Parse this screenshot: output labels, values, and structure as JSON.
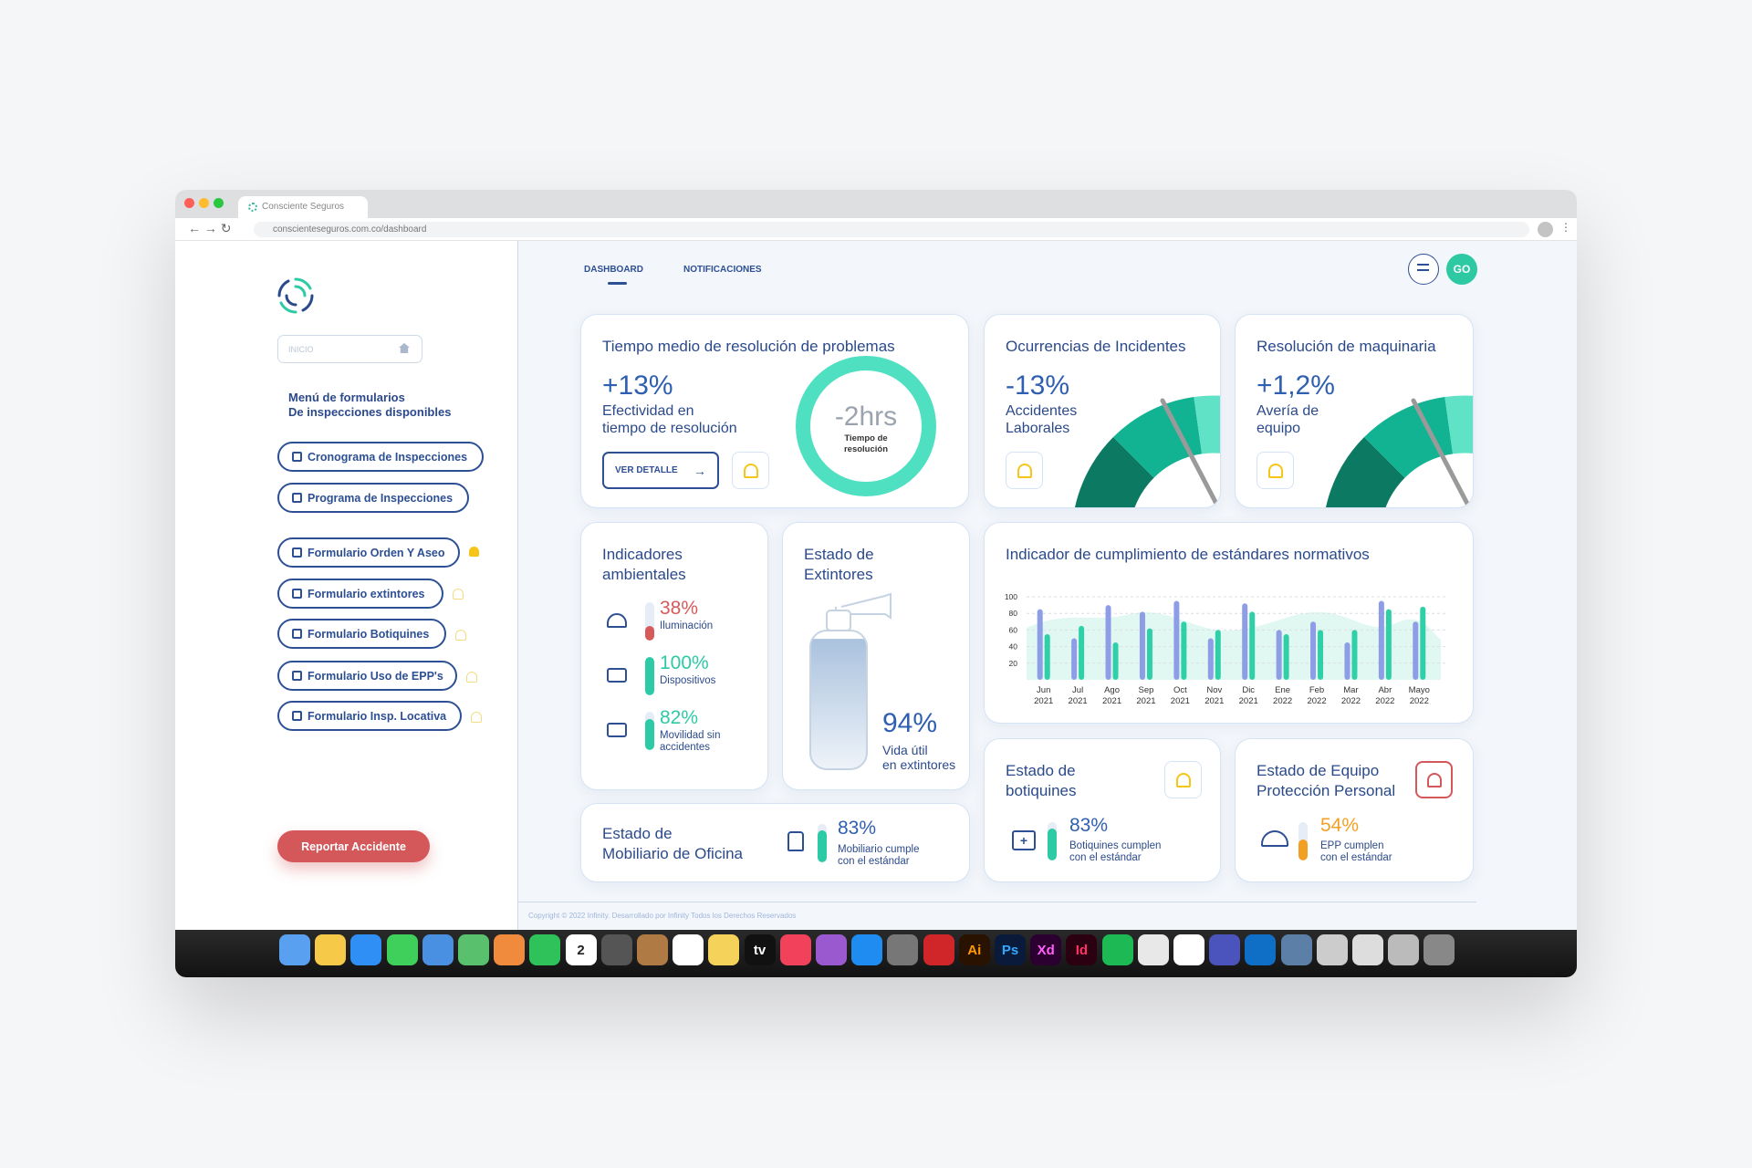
{
  "browser": {
    "tab_title": "Consciente Seguros",
    "url": "conscienteseguros.com.co/dashboard"
  },
  "sidebar": {
    "search_placeholder": "INICIO",
    "menu_title": [
      "Menú de formularios",
      "De inspecciones disponibles"
    ],
    "links": [
      "Cronograma de Inspecciones",
      "Programa de Inspecciones"
    ],
    "forms": [
      "Formulario Orden Y Aseo",
      "Formulario extintores",
      "Formulario Botiquines",
      "Formulario Uso de EPP's",
      "Formulario Insp. Locativa"
    ],
    "report_button": "Reportar Accidente"
  },
  "nav": {
    "tabs": [
      "DASHBOARD",
      "NOTIFICACIONES"
    ],
    "avatar": "GO"
  },
  "cards": {
    "resolution_time": {
      "title": "Tiempo medio de resolución de problemas",
      "value": "+13%",
      "label": [
        "Efectividad en",
        "tiempo de resolución"
      ],
      "button": "VER DETALLE",
      "donut_value": "-2hrs",
      "donut_label": [
        "Tiempo de",
        "resolución"
      ]
    },
    "incidents": {
      "title": "Ocurrencias de Incidentes",
      "value": "-13%",
      "label": [
        "Accidentes",
        "Laborales"
      ]
    },
    "machinery": {
      "title": "Resolución de maquinaria",
      "value": "+1,2%",
      "label": [
        "Avería de",
        "equipo"
      ]
    },
    "environment": {
      "title": [
        "Indicadores",
        "ambientales"
      ],
      "items": [
        {
          "value": 38,
          "label": "38%",
          "caption": [
            "Iluminación"
          ]
        },
        {
          "value": 100,
          "label": "100%",
          "caption": [
            "Dispositivos"
          ]
        },
        {
          "value": 82,
          "label": "82%",
          "caption": [
            "Movilidad sin",
            "accidentes"
          ]
        }
      ]
    },
    "extinguishers": {
      "title": [
        "Estado de",
        "Extintores"
      ],
      "value": 94,
      "label": "94%",
      "caption": [
        "Vida útil",
        "en extintores"
      ]
    },
    "furniture": {
      "title": [
        "Estado de",
        "Mobiliario de Oficina"
      ],
      "value": 83,
      "label": "83%",
      "caption": [
        "Mobiliario cumple",
        "con el estándar"
      ]
    },
    "first_aid": {
      "title": [
        "Estado de",
        "botiquines"
      ],
      "value": 83,
      "label": "83%",
      "caption": [
        "Botiquines cumplen",
        "con el estándar"
      ]
    },
    "ppe": {
      "title": [
        "Estado de Equipo",
        "Protección Personal"
      ],
      "value": 54,
      "label": "54%",
      "caption": [
        "EPP cumplen",
        "con el estándar"
      ]
    }
  },
  "compliance_chart": {
    "type": "bar",
    "title": "Indicador de cumplimiento de estándares normativos",
    "categories": [
      [
        "Jun",
        "2021"
      ],
      [
        "Jul",
        "2021"
      ],
      [
        "Ago",
        "2021"
      ],
      [
        "Sep",
        "2021"
      ],
      [
        "Oct",
        "2021"
      ],
      [
        "Nov",
        "2021"
      ],
      [
        "Dic",
        "2021"
      ],
      [
        "Ene",
        "2022"
      ],
      [
        "Feb",
        "2022"
      ],
      [
        "Mar",
        "2022"
      ],
      [
        "Abr",
        "2022"
      ],
      [
        "Mayo",
        "2022"
      ]
    ],
    "series": [
      {
        "color": "#8d9de6",
        "values": [
          85,
          50,
          90,
          82,
          95,
          50,
          92,
          60,
          70,
          45,
          95,
          70
        ]
      },
      {
        "color": "#2fd0a7",
        "values": [
          55,
          65,
          45,
          62,
          70,
          60,
          82,
          55,
          60,
          60,
          85,
          88
        ]
      }
    ],
    "ylim": [
      0,
      100
    ],
    "yticks": [
      20,
      40,
      60,
      80,
      100
    ],
    "grid": true
  },
  "footer": "Copyright © 2022 Infinity. Desarrollado por Infinity Todos los Derechos Reservados",
  "dock": {
    "labels": [
      "2",
      "tv",
      "Ai",
      "Ps",
      "Xd",
      "Id"
    ]
  }
}
